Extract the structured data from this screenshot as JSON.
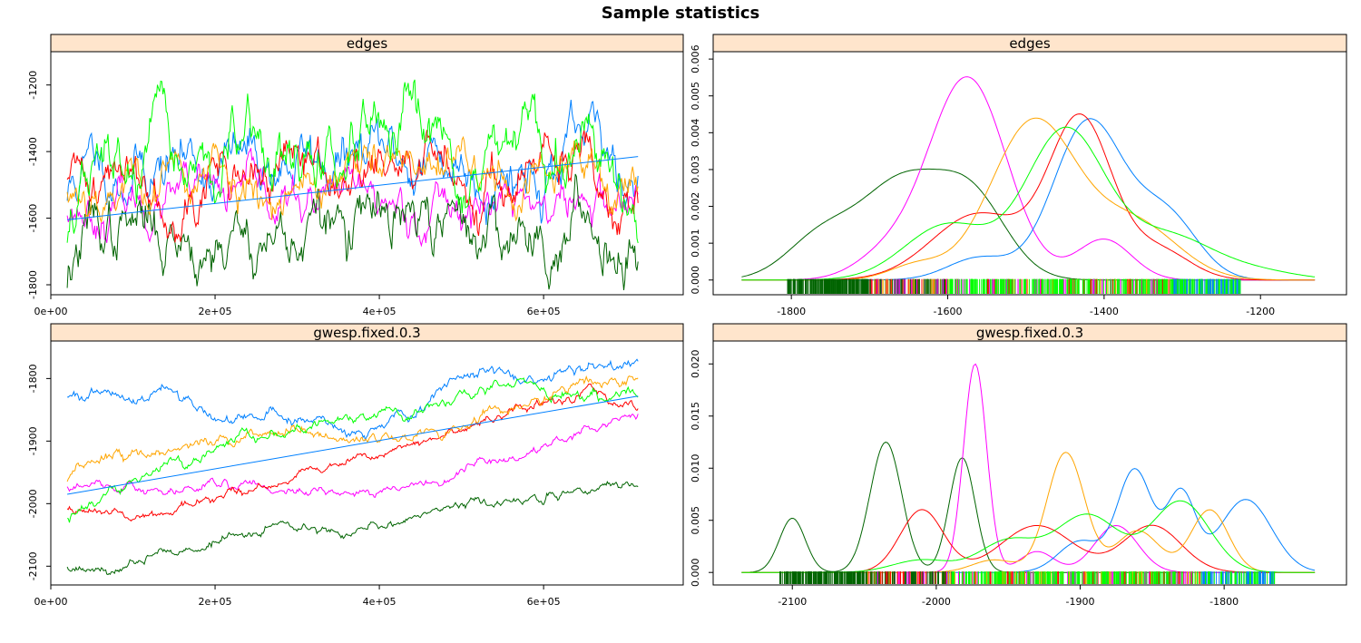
{
  "title": "Sample statistics",
  "colors": {
    "chain_blue": "#0080ff",
    "chain_magenta": "#ff00ff",
    "chain_darkgreen": "#006400",
    "chain_red": "#ff0000",
    "chain_orange": "#ffa500",
    "chain_green": "#00ff00",
    "strip_background": "#ffe5cc"
  },
  "chart_data": [
    {
      "type": "line",
      "panel": "trace",
      "strip_label": "edges",
      "xlim": [
        0,
        770000
      ],
      "ylim": [
        -1830,
        -1100
      ],
      "x_ticks": [
        0,
        200000,
        400000,
        600000
      ],
      "x_tick_labels": [
        "0e+00",
        "2e+05",
        "4e+05",
        "6e+05"
      ],
      "y_ticks": [
        -1800,
        -1600,
        -1400,
        -1200
      ],
      "y_tick_labels": [
        "-1800",
        "-1600",
        "-1400",
        "-1200"
      ],
      "x_range": [
        20000,
        715000
      ],
      "series": [
        {
          "color": "#0080ff",
          "mean": -1430,
          "start": -1550,
          "amp": 70,
          "seed": 11
        },
        {
          "color": "#ff00ff",
          "mean": -1560,
          "start": -1570,
          "amp": 55,
          "seed": 23
        },
        {
          "color": "#006400",
          "mean": -1640,
          "start": -1790,
          "amp": 75,
          "seed": 37
        },
        {
          "color": "#ff0000",
          "mean": -1470,
          "start": -1530,
          "amp": 65,
          "seed": 41
        },
        {
          "color": "#ffa500",
          "mean": -1480,
          "start": -1560,
          "amp": 60,
          "seed": 53
        },
        {
          "color": "#00ff00",
          "mean": -1450,
          "start": -1660,
          "amp": 80,
          "seed": 67
        }
      ],
      "trend": {
        "color": "#0080ff",
        "x": [
          20000,
          715000
        ],
        "y": [
          -1605,
          -1415
        ]
      }
    },
    {
      "type": "line",
      "panel": "density",
      "strip_label": "edges",
      "xlim": [
        -1900,
        -1090
      ],
      "ylim": [
        -0.0004,
        0.0062
      ],
      "x_ticks": [
        -1800,
        -1600,
        -1400,
        -1200
      ],
      "x_tick_labels": [
        "-1800",
        "-1600",
        "-1400",
        "-1200"
      ],
      "y_ticks": [
        0,
        0.001,
        0.002,
        0.003,
        0.004,
        0.005,
        0.006
      ],
      "y_tick_labels": [
        "0.000",
        "0.001",
        "0.002",
        "0.003",
        "0.004",
        "0.005",
        "0.006"
      ],
      "rug_range": [
        -1805,
        -1225
      ],
      "series": [
        {
          "color": "#006400",
          "components": [
            [
              -1760,
              45,
              0.0012
            ],
            [
              -1660,
              50,
              0.0025
            ],
            [
              -1570,
              45,
              0.0022
            ]
          ]
        },
        {
          "color": "#ff00ff",
          "components": [
            [
              -1575,
              50,
              0.0055
            ],
            [
              -1400,
              35,
              0.0011
            ],
            [
              -1680,
              40,
              0.0006
            ]
          ]
        },
        {
          "color": "#0080ff",
          "components": [
            [
              -1420,
              45,
              0.0043
            ],
            [
              -1320,
              40,
              0.0017
            ],
            [
              -1560,
              40,
              0.0006
            ]
          ]
        },
        {
          "color": "#ff0000",
          "components": [
            [
              -1430,
              40,
              0.0043
            ],
            [
              -1560,
              60,
              0.0018
            ],
            [
              -1330,
              40,
              0.0008
            ]
          ]
        },
        {
          "color": "#ffa500",
          "components": [
            [
              -1490,
              55,
              0.0043
            ],
            [
              -1360,
              55,
              0.0015
            ],
            [
              -1640,
              35,
              0.0004
            ]
          ]
        },
        {
          "color": "#00ff00",
          "components": [
            [
              -1450,
              50,
              0.004
            ],
            [
              -1600,
              55,
              0.0015
            ],
            [
              -1320,
              60,
              0.0012
            ],
            [
              -1200,
              50,
              0.0002
            ]
          ]
        }
      ]
    },
    {
      "type": "line",
      "panel": "trace",
      "strip_label": "gwesp.fixed.0.3",
      "xlim": [
        0,
        770000
      ],
      "ylim": [
        -2130,
        -1740
      ],
      "x_ticks": [
        0,
        200000,
        400000,
        600000
      ],
      "x_tick_labels": [
        "0e+00",
        "2e+05",
        "4e+05",
        "6e+05"
      ],
      "y_ticks": [
        -2100,
        -2000,
        -1900,
        -1800
      ],
      "y_tick_labels": [
        "-2100",
        "-2000",
        "-1900",
        "-1800"
      ],
      "x_range": [
        20000,
        715000
      ],
      "series": [
        {
          "color": "#0080ff",
          "knots": [
            [
              20000,
              -1825
            ],
            [
              100000,
              -1835
            ],
            [
              140000,
              -1810
            ],
            [
              200000,
              -1865
            ],
            [
              300000,
              -1860
            ],
            [
              370000,
              -1890
            ],
            [
              420000,
              -1860
            ],
            [
              460000,
              -1835
            ],
            [
              500000,
              -1790
            ],
            [
              600000,
              -1800
            ],
            [
              640000,
              -1780
            ],
            [
              715000,
              -1770
            ]
          ],
          "noise": 5,
          "seed": 101
        },
        {
          "color": "#ff00ff",
          "knots": [
            [
              20000,
              -1970
            ],
            [
              100000,
              -1975
            ],
            [
              200000,
              -1970
            ],
            [
              280000,
              -1980
            ],
            [
              350000,
              -1985
            ],
            [
              420000,
              -1970
            ],
            [
              460000,
              -1975
            ],
            [
              500000,
              -1945
            ],
            [
              600000,
              -1910
            ],
            [
              650000,
              -1885
            ],
            [
              715000,
              -1860
            ]
          ],
          "noise": 4,
          "seed": 103
        },
        {
          "color": "#006400",
          "knots": [
            [
              20000,
              -2105
            ],
            [
              80000,
              -2105
            ],
            [
              150000,
              -2080
            ],
            [
              200000,
              -2060
            ],
            [
              280000,
              -2040
            ],
            [
              350000,
              -2045
            ],
            [
              420000,
              -2030
            ],
            [
              500000,
              -2005
            ],
            [
              600000,
              -1985
            ],
            [
              650000,
              -1975
            ],
            [
              715000,
              -1975
            ]
          ],
          "noise": 4,
          "seed": 107
        },
        {
          "color": "#ff0000",
          "knots": [
            [
              20000,
              -2010
            ],
            [
              100000,
              -2020
            ],
            [
              200000,
              -1990
            ],
            [
              300000,
              -1960
            ],
            [
              360000,
              -1935
            ],
            [
              420000,
              -1910
            ],
            [
              500000,
              -1880
            ],
            [
              600000,
              -1840
            ],
            [
              660000,
              -1820
            ],
            [
              700000,
              -1840
            ],
            [
              715000,
              -1850
            ]
          ],
          "noise": 4,
          "seed": 109
        },
        {
          "color": "#ffa500",
          "knots": [
            [
              20000,
              -1960
            ],
            [
              100000,
              -1920
            ],
            [
              200000,
              -1900
            ],
            [
              300000,
              -1880
            ],
            [
              370000,
              -1900
            ],
            [
              420000,
              -1895
            ],
            [
              500000,
              -1870
            ],
            [
              600000,
              -1830
            ],
            [
              650000,
              -1810
            ],
            [
              715000,
              -1795
            ]
          ],
          "noise": 5,
          "seed": 113
        },
        {
          "color": "#00ff00",
          "knots": [
            [
              20000,
              -2025
            ],
            [
              100000,
              -1960
            ],
            [
              180000,
              -1930
            ],
            [
              230000,
              -1900
            ],
            [
              320000,
              -1880
            ],
            [
              380000,
              -1870
            ],
            [
              440000,
              -1850
            ],
            [
              500000,
              -1830
            ],
            [
              570000,
              -1800
            ],
            [
              620000,
              -1820
            ],
            [
              715000,
              -1825
            ]
          ],
          "noise": 5,
          "seed": 127
        }
      ],
      "trend": {
        "color": "#0080ff",
        "x": [
          20000,
          715000
        ],
        "y": [
          -1985,
          -1828
        ]
      }
    },
    {
      "type": "line",
      "panel": "density",
      "strip_label": "gwesp.fixed.0.3",
      "xlim": [
        -2155,
        -1715
      ],
      "ylim": [
        -0.0012,
        0.0222
      ],
      "x_ticks": [
        -2100,
        -2000,
        -1900,
        -1800
      ],
      "x_tick_labels": [
        "-2100",
        "-2000",
        "-1900",
        "-1800"
      ],
      "y_ticks": [
        0,
        0.005,
        0.01,
        0.015,
        0.02
      ],
      "y_tick_labels": [
        "0.000",
        "0.005",
        "0.010",
        "0.015",
        "0.020"
      ],
      "rug_range": [
        -2110,
        -1765
      ],
      "series": [
        {
          "color": "#006400",
          "components": [
            [
              -2100,
              9,
              0.0052
            ],
            [
              -2035,
              11,
              0.0125
            ],
            [
              -1982,
              9,
              0.011
            ]
          ]
        },
        {
          "color": "#ff00ff",
          "components": [
            [
              -1973,
              8,
              0.02
            ],
            [
              -1875,
              15,
              0.0045
            ],
            [
              -1930,
              12,
              0.002
            ]
          ]
        },
        {
          "color": "#0080ff",
          "components": [
            [
              -1862,
              12,
              0.0098
            ],
            [
              -1830,
              10,
              0.0075
            ],
            [
              -1785,
              18,
              0.007
            ],
            [
              -1900,
              15,
              0.003
            ]
          ]
        },
        {
          "color": "#ff0000",
          "components": [
            [
              -2010,
              15,
              0.006
            ],
            [
              -1930,
              25,
              0.0045
            ],
            [
              -1850,
              20,
              0.0045
            ]
          ]
        },
        {
          "color": "#ffa500",
          "components": [
            [
              -1910,
              13,
              0.0115
            ],
            [
              -1860,
              15,
              0.004
            ],
            [
              -1810,
              13,
              0.006
            ],
            [
              -1960,
              15,
              0.0012
            ]
          ]
        },
        {
          "color": "#00ff00",
          "components": [
            [
              -1895,
              22,
              0.0055
            ],
            [
              -1830,
              20,
              0.0068
            ],
            [
              -1950,
              20,
              0.003
            ],
            [
              -2010,
              20,
              0.0012
            ]
          ]
        }
      ]
    }
  ]
}
